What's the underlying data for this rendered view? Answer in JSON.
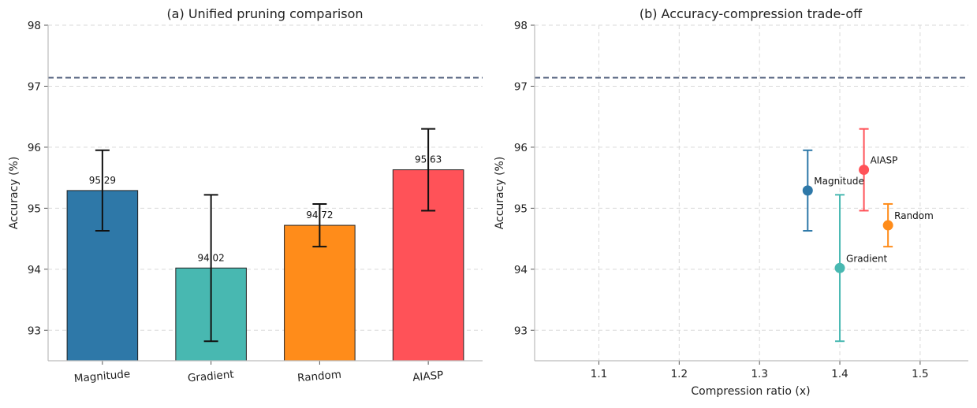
{
  "chart_data": [
    {
      "type": "bar",
      "title": "(a) Unified pruning comparison",
      "ylabel": "Accuracy (%)",
      "xlabel": "",
      "ylim": [
        92.5,
        98
      ],
      "yticks": [
        "93",
        "94",
        "95",
        "96",
        "97",
        "98"
      ],
      "grid": "y dashed",
      "categories": [
        "Magnitude",
        "Gradient",
        "Random",
        "AIASP"
      ],
      "values": [
        95.29,
        94.02,
        94.72,
        95.63
      ],
      "value_labels": [
        "95.29",
        "94.02",
        "94.72",
        "95.63"
      ],
      "error_low": [
        94.63,
        92.82,
        94.37,
        94.96
      ],
      "error_high": [
        95.95,
        95.22,
        95.07,
        96.3
      ],
      "colors": [
        "#2e78a8",
        "#48b8b1",
        "#ff8c1a",
        "#ff5258"
      ],
      "reference_line": {
        "y": 97.14,
        "style": "dashed",
        "color": "#5c6a85"
      }
    },
    {
      "type": "scatter",
      "title": "(b) Accuracy-compression trade-off",
      "ylabel": "Accuracy (%)",
      "xlabel": "Compression ratio (x)",
      "xlim": [
        1.02,
        1.56
      ],
      "ylim": [
        92.5,
        98
      ],
      "xticks": [
        "1.1",
        "1.2",
        "1.3",
        "1.4",
        "1.5"
      ],
      "yticks": [
        "93",
        "94",
        "95",
        "96",
        "97",
        "98"
      ],
      "grid": "both dashed",
      "points": [
        {
          "label": "Magnitude",
          "x": 1.36,
          "y": 95.29,
          "err_low": 94.63,
          "err_high": 95.95,
          "color": "#2e78a8"
        },
        {
          "label": "Gradient",
          "x": 1.4,
          "y": 94.02,
          "err_low": 92.82,
          "err_high": 95.22,
          "color": "#48b8b1"
        },
        {
          "label": "Random",
          "x": 1.46,
          "y": 94.72,
          "err_low": 94.37,
          "err_high": 95.07,
          "color": "#ff8c1a"
        },
        {
          "label": "AIASP",
          "x": 1.43,
          "y": 95.63,
          "err_low": 94.96,
          "err_high": 96.3,
          "color": "#ff5258"
        }
      ],
      "reference_line": {
        "y": 97.14,
        "style": "dashed",
        "color": "#5c6a85"
      }
    }
  ]
}
